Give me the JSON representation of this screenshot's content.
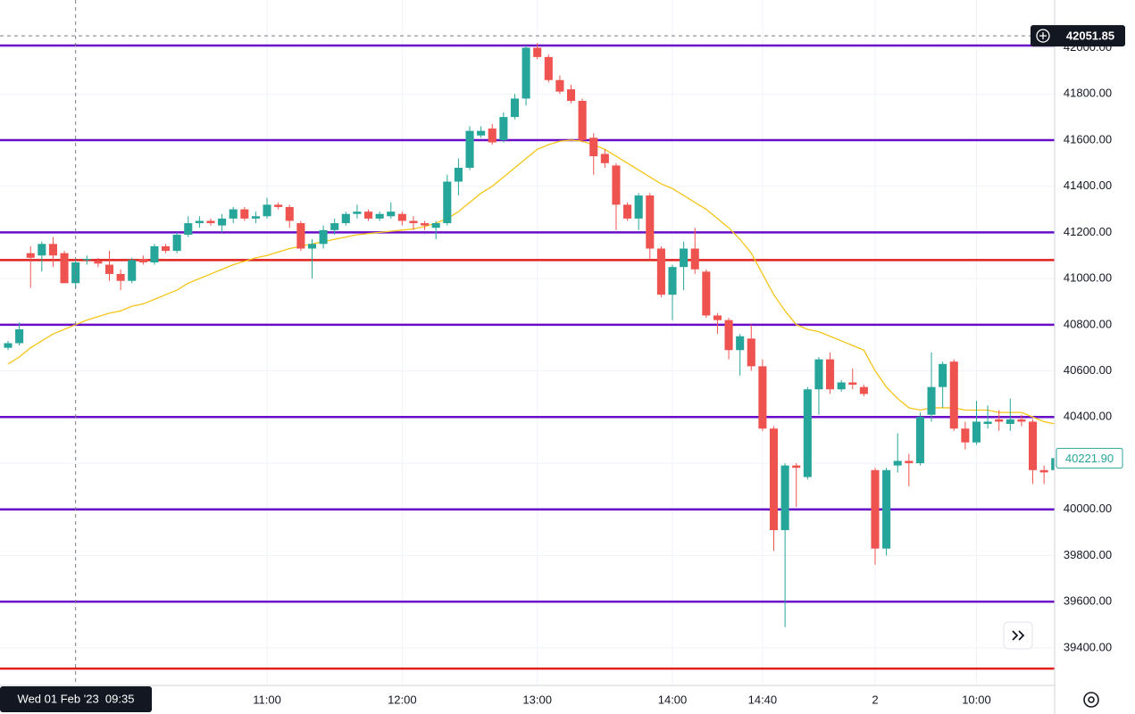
{
  "chart_data": {
    "type": "candlestick",
    "up_color": "#26a69a",
    "down_color": "#ef5350",
    "open": [
      40700,
      40720,
      41110,
      41100,
      41150,
      41110,
      40980,
      41080,
      41075,
      41060,
      41020,
      40990,
      41085,
      41070,
      41140,
      41120,
      41190,
      41240,
      41250,
      41230,
      41260,
      41300,
      41260,
      41270,
      41320,
      41310,
      41240,
      41130,
      41150,
      41210,
      41240,
      41280,
      41290,
      41260,
      41270,
      41280,
      41250,
      41240,
      41220,
      41240,
      41420,
      41480,
      41620,
      41650,
      41600,
      41700,
      41780,
      42000,
      41960,
      41860,
      41820,
      41770,
      41610,
      41540,
      41490,
      41320,
      41260,
      41360,
      41130,
      40930,
      41050,
      41130,
      41030,
      40840,
      40820,
      40690,
      40740,
      40620,
      40350,
      39910,
      40190,
      40140,
      40520,
      40650,
      40520,
      40550,
      40530,
      40170,
      39830,
      40190,
      40210,
      40200,
      40410,
      40530,
      40640,
      40350,
      40290,
      40370,
      40390,
      40370,
      40390,
      40380,
      40170,
      40170
    ],
    "high": [
      40730,
      40810,
      41140,
      41160,
      41180,
      41120,
      41080,
      41100,
      41090,
      41120,
      41040,
      41090,
      41100,
      41150,
      41150,
      41200,
      41270,
      41270,
      41260,
      41280,
      41310,
      41310,
      41290,
      41350,
      41330,
      41320,
      41250,
      41170,
      41230,
      41260,
      41290,
      41320,
      41300,
      41290,
      41330,
      41290,
      41270,
      41250,
      41250,
      41450,
      41520,
      41660,
      41660,
      41670,
      41720,
      41800,
      42010,
      42020,
      41970,
      41880,
      41840,
      41780,
      41630,
      41560,
      41500,
      41330,
      41370,
      41370,
      41140,
      41060,
      41160,
      41220,
      41040,
      40850,
      40830,
      40760,
      40800,
      40650,
      40360,
      40200,
      40200,
      40530,
      40660,
      40680,
      40560,
      40610,
      40540,
      40180,
      40180,
      40330,
      40240,
      40420,
      40680,
      40640,
      40650,
      40380,
      40470,
      40450,
      40430,
      40480,
      40410,
      40390,
      40190,
      40230
    ],
    "low": [
      40690,
      40710,
      40960,
      41030,
      41050,
      40980,
      40960,
      41060,
      41050,
      40990,
      40950,
      40980,
      41060,
      41060,
      41110,
      41110,
      41180,
      41220,
      41230,
      41200,
      41240,
      41250,
      41240,
      41260,
      41300,
      41220,
      41120,
      41000,
      41130,
      41190,
      41230,
      41260,
      41250,
      41250,
      41260,
      41230,
      41210,
      41210,
      41170,
      41230,
      41360,
      41470,
      41610,
      41580,
      41590,
      41690,
      41750,
      41950,
      41850,
      41800,
      41760,
      41590,
      41450,
      41480,
      41210,
      41250,
      41210,
      41080,
      40920,
      40820,
      40950,
      41020,
      40830,
      40760,
      40650,
      40580,
      40600,
      40340,
      39820,
      39490,
      40010,
      40130,
      40410,
      40500,
      40510,
      40520,
      40490,
      39760,
      39800,
      40160,
      40100,
      40190,
      40380,
      40440,
      40340,
      40260,
      40280,
      40350,
      40340,
      40340,
      40360,
      40110,
      40110,
      40160
    ],
    "close": [
      40720,
      40780,
      41090,
      41150,
      41100,
      40980,
      41070,
      41085,
      41065,
      41020,
      40990,
      41080,
      41070,
      41140,
      41120,
      41190,
      41240,
      41250,
      41240,
      41260,
      41300,
      41260,
      41270,
      41320,
      41310,
      41250,
      41130,
      41150,
      41210,
      41240,
      41280,
      41290,
      41260,
      41280,
      41290,
      41250,
      41240,
      41230,
      41240,
      41420,
      41480,
      41640,
      41640,
      41590,
      41700,
      41780,
      42000,
      41960,
      41860,
      41810,
      41770,
      41600,
      41530,
      41500,
      41320,
      41260,
      41360,
      41130,
      40930,
      41050,
      41130,
      41040,
      40840,
      40820,
      40690,
      40750,
      40620,
      40350,
      39910,
      40190,
      40180,
      40520,
      40650,
      40520,
      40550,
      40540,
      40500,
      39830,
      40170,
      40210,
      40200,
      40400,
      40530,
      40630,
      40350,
      40290,
      40380,
      40380,
      40380,
      40390,
      40380,
      40170,
      40160,
      40221.9
    ],
    "moving_average": {
      "color": "#f5c518",
      "values": [
        40630,
        40660,
        40700,
        40730,
        40760,
        40780,
        40800,
        40820,
        40835,
        40850,
        40860,
        40880,
        40890,
        40910,
        40930,
        40950,
        40980,
        41000,
        41020,
        41040,
        41060,
        41075,
        41090,
        41100,
        41115,
        41130,
        41140,
        41150,
        41160,
        41170,
        41180,
        41190,
        41195,
        41200,
        41205,
        41210,
        41215,
        41225,
        41240,
        41260,
        41290,
        41330,
        41370,
        41400,
        41440,
        41480,
        41520,
        41560,
        41580,
        41595,
        41600,
        41595,
        41580,
        41560,
        41530,
        41500,
        41470,
        41440,
        41410,
        41390,
        41360,
        41330,
        41300,
        41260,
        41220,
        41170,
        41110,
        41020,
        40930,
        40860,
        40800,
        40780,
        40770,
        40750,
        40730,
        40710,
        40690,
        40600,
        40530,
        40480,
        40440,
        40430,
        40440,
        40440,
        40440,
        40430,
        40430,
        40430,
        40420,
        40420,
        40420,
        40400,
        40380,
        40370
      ]
    },
    "levels": [
      {
        "value": 42010,
        "color": "#6a0dc8"
      },
      {
        "value": 41600,
        "color": "#6a0dc8"
      },
      {
        "value": 41200,
        "color": "#6a0dc8"
      },
      {
        "value": 41080,
        "color": "#e0201c"
      },
      {
        "value": 40800,
        "color": "#6a0dc8"
      },
      {
        "value": 40400,
        "color": "#6a0dc8"
      },
      {
        "value": 40000,
        "color": "#6a0dc8"
      },
      {
        "value": 39600,
        "color": "#6a0dc8"
      },
      {
        "value": 39310,
        "color": "#e0201c"
      }
    ],
    "xlim": [
      -0.714,
      92.94
    ],
    "ylim": [
      39237,
      42207
    ],
    "yticks": [
      {
        "value": 42000,
        "label": "42000.00"
      },
      {
        "value": 41800,
        "label": "41800.00"
      },
      {
        "value": 41600,
        "label": "41600.00"
      },
      {
        "value": 41400,
        "label": "41400.00"
      },
      {
        "value": 41200,
        "label": "41200.00"
      },
      {
        "value": 41000,
        "label": "41000.00"
      },
      {
        "value": 40800,
        "label": "40800.00"
      },
      {
        "value": 40600,
        "label": "40600.00"
      },
      {
        "value": 40400,
        "label": "40400.00"
      },
      {
        "value": 40200,
        "label": "40200.00"
      },
      {
        "value": 40000,
        "label": "40000.00"
      },
      {
        "value": 39800,
        "label": "39800.00"
      },
      {
        "value": 39600,
        "label": "39600.00"
      },
      {
        "value": 39400,
        "label": "39400.00"
      }
    ],
    "xticks": [
      {
        "value": 23,
        "label": "11:00"
      },
      {
        "value": 35,
        "label": "12:00"
      },
      {
        "value": 47,
        "label": "13:00"
      },
      {
        "value": 59,
        "label": "14:00"
      },
      {
        "value": 67,
        "label": "14:40"
      },
      {
        "value": 77,
        "label": "2"
      },
      {
        "value": 86,
        "label": "10:00"
      }
    ],
    "last_price": {
      "value": 40221.9,
      "label": "40221.90"
    },
    "crosshair": {
      "x": 6,
      "price": 42051.85,
      "time_label": "Wed 01 Feb '23  09:35"
    }
  }
}
